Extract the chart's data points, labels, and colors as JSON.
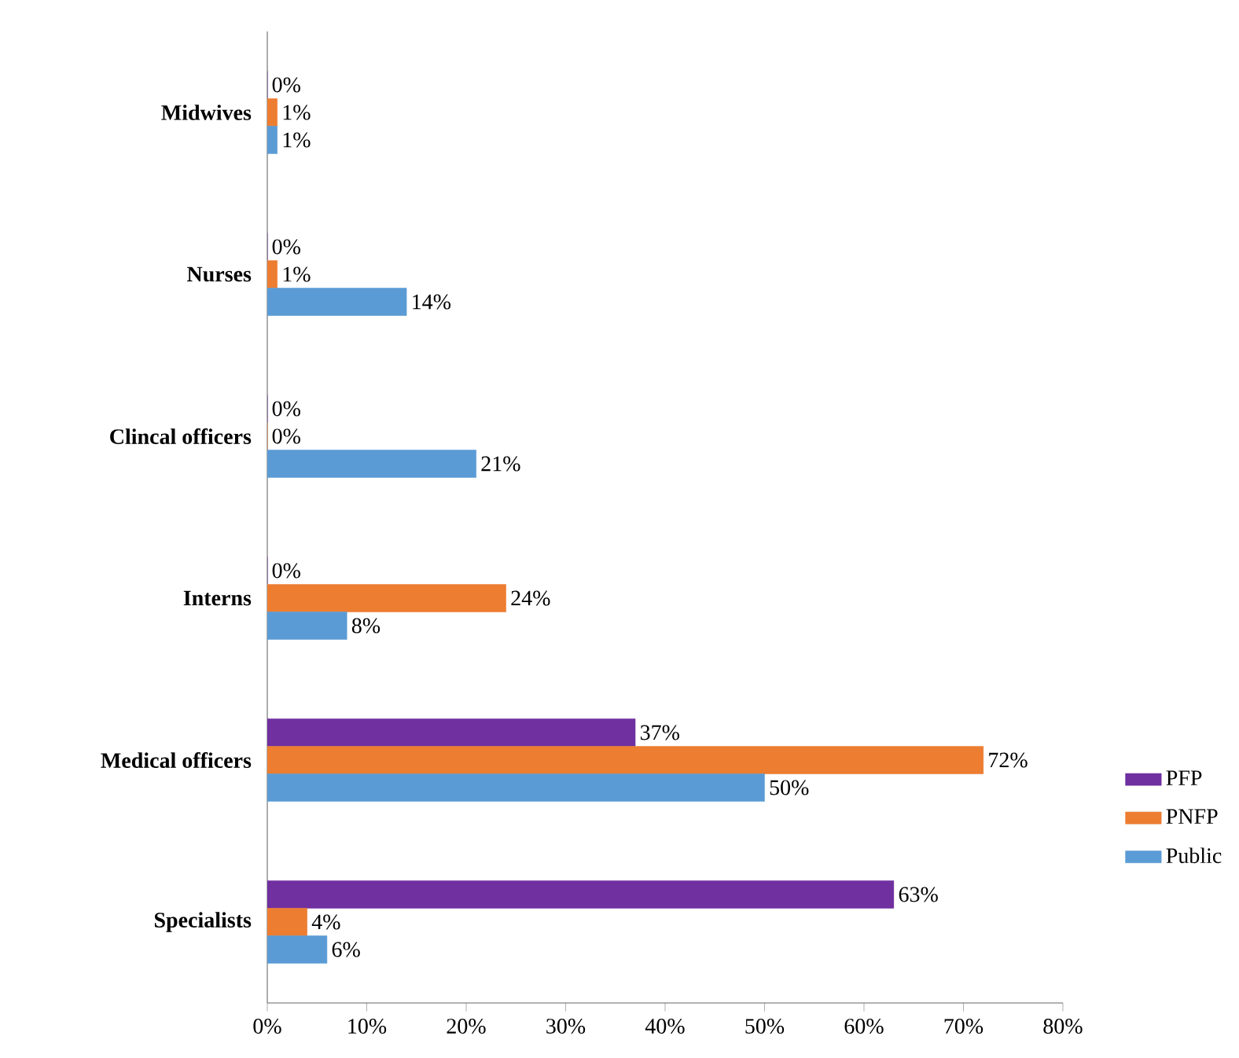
{
  "chart_data": {
    "type": "bar",
    "orientation": "horizontal",
    "categories": [
      "Midwives",
      "Nurses",
      "Clincal officers",
      "Interns",
      "Medical officers",
      "Specialists"
    ],
    "series": [
      {
        "name": "PFP",
        "color": "#7030a0",
        "values": [
          0,
          0,
          0,
          0,
          37,
          63
        ],
        "value_labels": [
          "0%",
          "0%",
          "0%",
          "0%",
          "37%",
          "63%"
        ]
      },
      {
        "name": "PNFP",
        "color": "#ed7d31",
        "values": [
          1,
          1,
          0,
          24,
          72,
          4
        ],
        "value_labels": [
          "1%",
          "1%",
          "0%",
          "24%",
          "72%",
          "4%"
        ]
      },
      {
        "name": "Public",
        "color": "#5b9bd5",
        "values": [
          1,
          14,
          21,
          8,
          50,
          6
        ],
        "value_labels": [
          "1%",
          "14%",
          "21%",
          "8%",
          "50%",
          "6%"
        ]
      }
    ],
    "xlim": [
      0,
      80
    ],
    "xticks": [
      {
        "value": 0,
        "label": "0%"
      },
      {
        "value": 10,
        "label": "10%"
      },
      {
        "value": 20,
        "label": "20%"
      },
      {
        "value": 30,
        "label": "30%"
      },
      {
        "value": 40,
        "label": "40%"
      },
      {
        "value": 50,
        "label": "50%"
      },
      {
        "value": 60,
        "label": "60%"
      },
      {
        "value": 70,
        "label": "70%"
      },
      {
        "value": 80,
        "label": "80%"
      }
    ],
    "legend": "right"
  }
}
